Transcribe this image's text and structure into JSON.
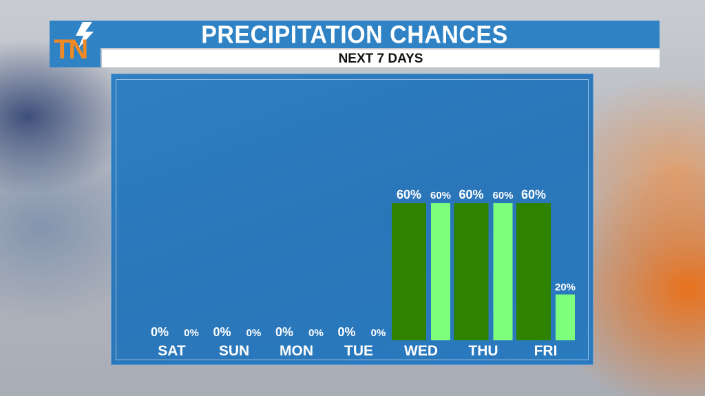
{
  "header": {
    "title": "PRECIPITATION CHANCES",
    "subtitle": "NEXT 7 DAYS",
    "logo_text": "TN",
    "logo_icon": "lightning-bolt-icon"
  },
  "colors": {
    "header_blue": "#2f83c5",
    "day_bar": "#2e8200",
    "night_bar": "#7dff7d",
    "logo_orange": "#f08a24"
  },
  "chart_data": {
    "type": "bar",
    "categories": [
      "SAT",
      "SUN",
      "MON",
      "TUE",
      "WED",
      "THU",
      "FRI"
    ],
    "series": [
      {
        "values": [
          0,
          0,
          0,
          0,
          60,
          60,
          60
        ]
      },
      {
        "values": [
          0,
          0,
          0,
          0,
          60,
          60,
          20
        ]
      }
    ],
    "value_labels": [
      [
        "0%",
        "0%",
        "0%",
        "0%",
        "60%",
        "60%",
        "60%"
      ],
      [
        "0%",
        "0%",
        "0%",
        "0%",
        "60%",
        "60%",
        "20%"
      ]
    ],
    "unit": "%",
    "ylim": [
      0,
      100
    ],
    "title": "",
    "xlabel": "",
    "ylabel": "",
    "grid": false,
    "legend": "none"
  }
}
